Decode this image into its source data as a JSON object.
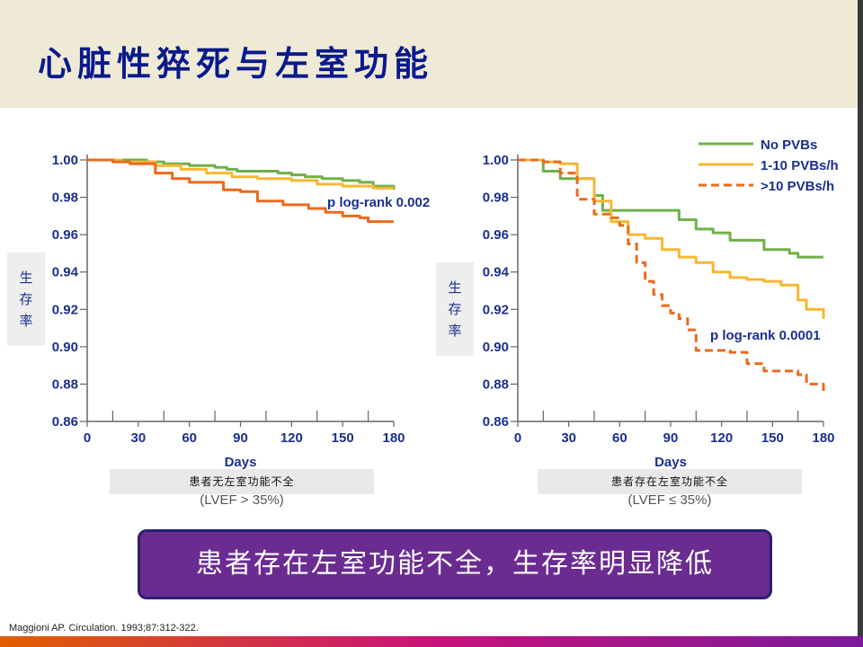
{
  "title": "心脏性猝死与左室功能",
  "banner": "患者存在左室功能不全，生存率明显降低",
  "citation": "Maggioni AP.  Circulation.  1993;87:312-322.",
  "colors": {
    "title": "#0a1a8c",
    "banner_bg": "#6a2c91",
    "green": "#6fb04a",
    "yellow": "#f7b731",
    "orange": "#ea6a1e",
    "axis_text": "#1a2f8f"
  },
  "chart_data": [
    {
      "type": "line",
      "y_axis_label": "生存率",
      "xlabel": "Days",
      "x_ticks": [
        0,
        30,
        60,
        90,
        120,
        150,
        180
      ],
      "y_ticks": [
        "0.86",
        "0.88",
        "0.90",
        "0.92",
        "0.94",
        "0.96",
        "0.98",
        "1.00"
      ],
      "ylim": [
        0.86,
        1.0
      ],
      "xlim": [
        0,
        180
      ],
      "caption_cn": "患者无左室功能不全",
      "caption_sub": "(LVEF > 35%)",
      "annotation": "p log-rank 0.002",
      "series": [
        {
          "color": "#6fb04a",
          "dash": false,
          "x": [
            0,
            15,
            35,
            45,
            60,
            75,
            82,
            88,
            112,
            120,
            128,
            138,
            150,
            160,
            168,
            180
          ],
          "y": [
            1.0,
            1.0,
            0.999,
            0.998,
            0.997,
            0.996,
            0.995,
            0.994,
            0.993,
            0.992,
            0.991,
            0.99,
            0.989,
            0.988,
            0.986,
            0.984
          ]
        },
        {
          "color": "#f7b731",
          "dash": false,
          "x": [
            0,
            20,
            40,
            55,
            70,
            85,
            100,
            120,
            135,
            150,
            160,
            168,
            180
          ],
          "y": [
            1.0,
            0.999,
            0.997,
            0.995,
            0.993,
            0.991,
            0.99,
            0.989,
            0.987,
            0.986,
            0.986,
            0.985,
            0.985
          ]
        },
        {
          "color": "#ea6a1e",
          "dash": false,
          "x": [
            0,
            15,
            25,
            40,
            50,
            60,
            80,
            90,
            100,
            115,
            130,
            140,
            150,
            160,
            165,
            180
          ],
          "y": [
            1.0,
            0.999,
            0.998,
            0.993,
            0.99,
            0.988,
            0.984,
            0.983,
            0.978,
            0.976,
            0.974,
            0.972,
            0.97,
            0.969,
            0.967,
            0.967
          ]
        }
      ]
    },
    {
      "type": "line",
      "y_axis_label": "生存率",
      "xlabel": "Days",
      "x_ticks": [
        0,
        30,
        60,
        90,
        120,
        150,
        180
      ],
      "y_ticks": [
        "0.86",
        "0.88",
        "0.90",
        "0.92",
        "0.94",
        "0.96",
        "0.98",
        "1.00"
      ],
      "ylim": [
        0.86,
        1.0
      ],
      "xlim": [
        0,
        180
      ],
      "caption_cn": "患者存在左室功能不全",
      "caption_sub": "(LVEF ≤ 35%)",
      "annotation": "p log-rank 0.0001",
      "legend": [
        "No PVBs",
        "1-10 PVBs/h",
        ">10 PVBs/h"
      ],
      "legend_position": "top-right",
      "series": [
        {
          "name": "No PVBs",
          "color": "#6fb04a",
          "dash": false,
          "x": [
            0,
            10,
            15,
            25,
            35,
            45,
            50,
            60,
            70,
            80,
            90,
            95,
            105,
            115,
            125,
            135,
            145,
            150,
            160,
            165,
            180
          ],
          "y": [
            1.0,
            1.0,
            0.994,
            0.99,
            0.99,
            0.981,
            0.973,
            0.973,
            0.973,
            0.973,
            0.973,
            0.968,
            0.963,
            0.961,
            0.957,
            0.957,
            0.952,
            0.952,
            0.95,
            0.948,
            0.948
          ]
        },
        {
          "name": "1-10 PVBs/h",
          "color": "#f7b731",
          "dash": false,
          "x": [
            0,
            10,
            15,
            25,
            35,
            45,
            55,
            65,
            75,
            85,
            95,
            105,
            115,
            125,
            135,
            145,
            155,
            165,
            170,
            180
          ],
          "y": [
            1.0,
            1.0,
            0.999,
            0.998,
            0.99,
            0.978,
            0.967,
            0.96,
            0.958,
            0.952,
            0.948,
            0.945,
            0.94,
            0.937,
            0.936,
            0.935,
            0.933,
            0.925,
            0.92,
            0.915
          ]
        },
        {
          "name": ">10 PVBs/h",
          "color": "#ea6a1e",
          "dash": true,
          "x": [
            0,
            10,
            15,
            25,
            35,
            45,
            55,
            60,
            65,
            70,
            75,
            80,
            85,
            90,
            95,
            100,
            105,
            115,
            125,
            135,
            145,
            155,
            165,
            170,
            180
          ],
          "y": [
            1.0,
            1.0,
            0.999,
            0.993,
            0.979,
            0.971,
            0.969,
            0.965,
            0.955,
            0.945,
            0.935,
            0.928,
            0.922,
            0.918,
            0.915,
            0.909,
            0.898,
            0.898,
            0.897,
            0.891,
            0.887,
            0.887,
            0.885,
            0.88,
            0.874
          ]
        }
      ]
    }
  ]
}
